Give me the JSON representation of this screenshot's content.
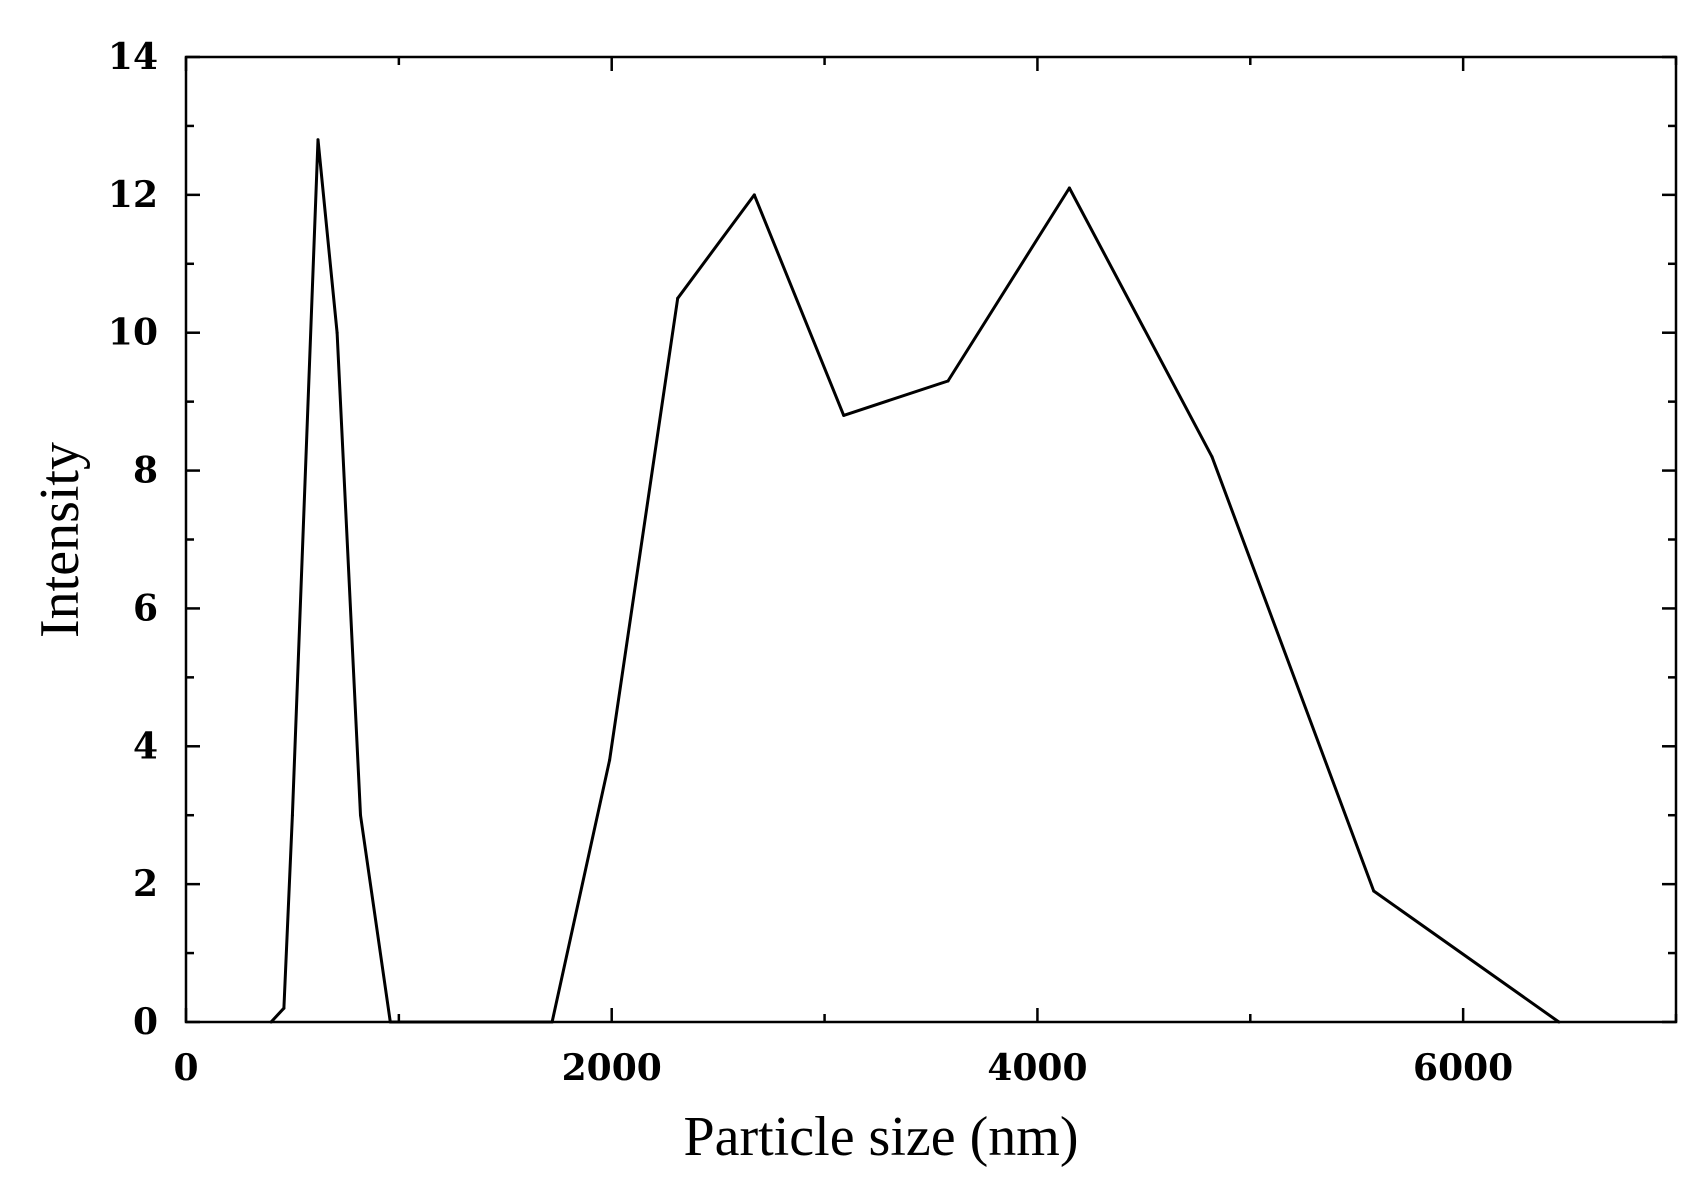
{
  "chart_data": {
    "type": "line",
    "title": "",
    "xlabel": "Particle size (nm)",
    "ylabel": "Intensity",
    "xlim": [
      0,
      7000
    ],
    "ylim": [
      0,
      14
    ],
    "xticks": [
      0,
      2000,
      4000,
      6000
    ],
    "xtick_labels": [
      "0",
      "2000",
      "4000",
      "6000"
    ],
    "yticks": [
      0,
      2,
      4,
      6,
      8,
      10,
      12,
      14
    ],
    "ytick_labels": [
      "0",
      "2",
      "4",
      "6",
      "8",
      "10",
      "12",
      "14"
    ],
    "grid": false,
    "legend": "none",
    "series": [
      {
        "color": "#000000",
        "x": [
          400,
          460,
          500,
          620,
          710,
          820,
          960,
          1720,
          1990,
          2310,
          2670,
          3090,
          3580,
          4150,
          4820,
          5580,
          6450
        ],
        "y": [
          0,
          0.2,
          3,
          12.8,
          10,
          3,
          0,
          0,
          3.8,
          10.5,
          12,
          8.8,
          9.3,
          12.1,
          8.2,
          1.9,
          0
        ]
      }
    ]
  }
}
